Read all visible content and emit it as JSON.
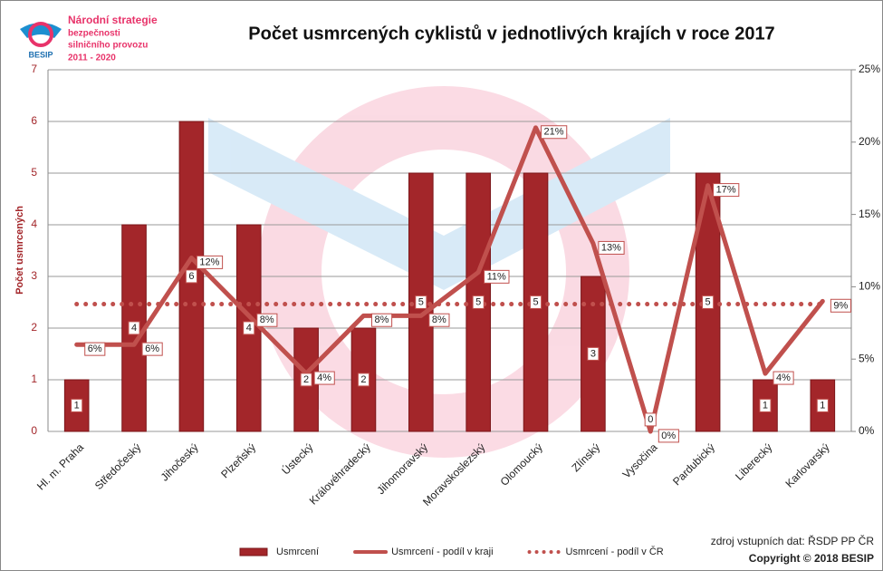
{
  "logo": {
    "lines": [
      "Národní strategie",
      "bezpečnosti",
      "silničního provozu",
      "2011 - 2020"
    ],
    "brand": "BESIP"
  },
  "source": "zdroj vstupních dat: ŘSDP PP ČR",
  "copyright": "Copyright © 2018 BESIP",
  "chart_data": {
    "type": "bar",
    "title": "Počet usmrcených cyklistů v jednotlivých krajích v roce 2017",
    "y_label": "Počet usmrcených",
    "categories": [
      "Hl. m. Praha",
      "Středočeský",
      "Jihočeský",
      "Plzeňský",
      "Ústecký",
      "Královéhradecký",
      "Jihomoravský",
      "Moravskoslezský",
      "Olomoucký",
      "Zlínský",
      "Vysočina",
      "Pardubický",
      "Liberecký",
      "Karlovarský"
    ],
    "series": [
      {
        "name": "Usmrcení",
        "type": "bar",
        "color": "#a3262a",
        "values": [
          1,
          4,
          6,
          4,
          2,
          2,
          5,
          5,
          5,
          3,
          0,
          5,
          1,
          1
        ]
      },
      {
        "name": "Usmrcení - podíl v kraji",
        "type": "line",
        "axis": "y2",
        "color": "#c0504d",
        "style": "solid",
        "values": [
          6,
          6,
          12,
          8,
          4,
          8,
          8,
          11,
          21,
          13,
          0,
          17,
          4,
          9
        ],
        "value_labels": [
          "6%",
          "6%",
          "12%",
          "8%",
          "4%",
          "8%",
          "8%",
          "11%",
          "21%",
          "13%",
          "0%",
          "17%",
          "4%",
          "9%"
        ]
      },
      {
        "name": "Usmrcení - podíl v ČR",
        "type": "line",
        "axis": "y2",
        "color": "#c0504d",
        "style": "dotted",
        "values": [
          8.8,
          8.8,
          8.8,
          8.8,
          8.8,
          8.8,
          8.8,
          8.8,
          8.8,
          8.8,
          8.8,
          8.8,
          8.8,
          8.8
        ]
      }
    ],
    "ylim": [
      0,
      7
    ],
    "yticks": [
      0,
      1,
      2,
      3,
      4,
      5,
      6,
      7
    ],
    "y2lim": [
      0,
      25
    ],
    "y2ticks": [
      {
        "value": 0,
        "label": "0%"
      },
      {
        "value": 5,
        "label": "5%"
      },
      {
        "value": 10,
        "label": "10%"
      },
      {
        "value": 15,
        "label": "15%"
      },
      {
        "value": 20,
        "label": "20%"
      },
      {
        "value": 25,
        "label": "25%"
      }
    ],
    "grid": true
  }
}
